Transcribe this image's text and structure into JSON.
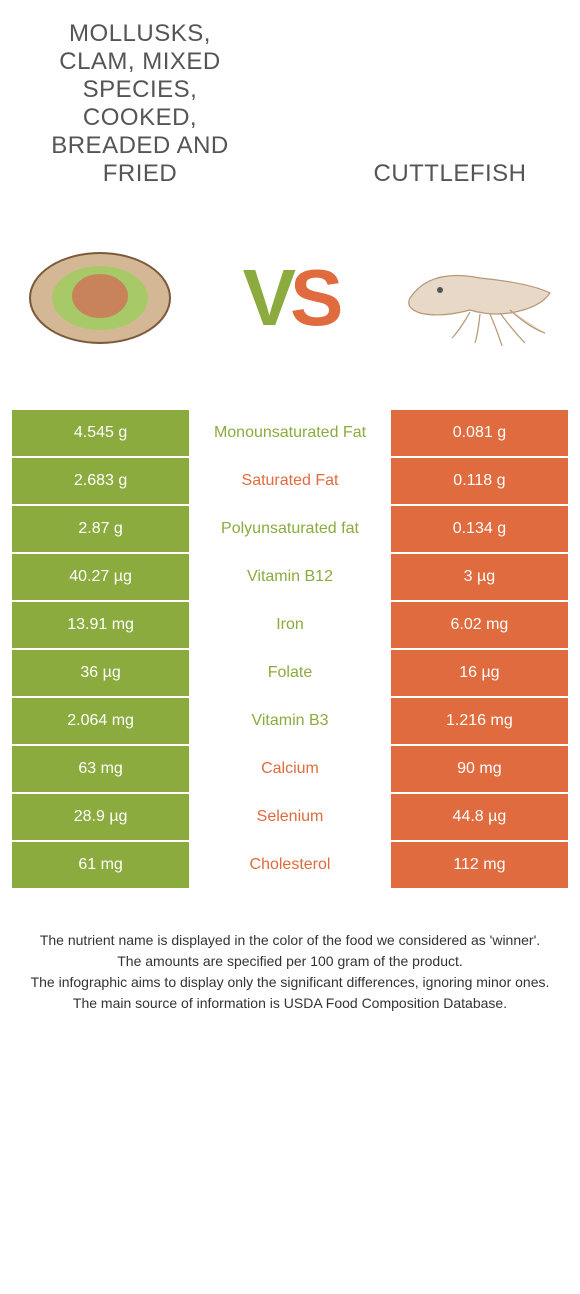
{
  "header": {
    "left_title": "Mollusks, clam, mixed species, cooked, breaded and fried",
    "right_title": "Cuttlefish",
    "vs_v": "V",
    "vs_s": "S"
  },
  "colors": {
    "green": "#8bab3f",
    "orange": "#e06b3e",
    "background": "#ffffff"
  },
  "table": {
    "rows": [
      {
        "left": "4.545 g",
        "label": "Monounsaturated Fat",
        "right": "0.081 g",
        "winner": "green"
      },
      {
        "left": "2.683 g",
        "label": "Saturated Fat",
        "right": "0.118 g",
        "winner": "orange"
      },
      {
        "left": "2.87 g",
        "label": "Polyunsaturated fat",
        "right": "0.134 g",
        "winner": "green"
      },
      {
        "left": "40.27 µg",
        "label": "Vitamin B12",
        "right": "3 µg",
        "winner": "green"
      },
      {
        "left": "13.91 mg",
        "label": "Iron",
        "right": "6.02 mg",
        "winner": "green"
      },
      {
        "left": "36 µg",
        "label": "Folate",
        "right": "16 µg",
        "winner": "green"
      },
      {
        "left": "2.064 mg",
        "label": "Vitamin B3",
        "right": "1.216 mg",
        "winner": "green"
      },
      {
        "left": "63 mg",
        "label": "Calcium",
        "right": "90 mg",
        "winner": "orange"
      },
      {
        "left": "28.9 µg",
        "label": "Selenium",
        "right": "44.8 µg",
        "winner": "orange"
      },
      {
        "left": "61 mg",
        "label": "Cholesterol",
        "right": "112 mg",
        "winner": "orange"
      }
    ]
  },
  "footnotes": {
    "line1": "The nutrient name is displayed in the color of the food we considered as 'winner'.",
    "line2": "The amounts are specified per 100 gram of the product.",
    "line3": "The infographic aims to display only the significant differences, ignoring minor ones.",
    "line4": "The main source of information is USDA Food Composition Database."
  }
}
